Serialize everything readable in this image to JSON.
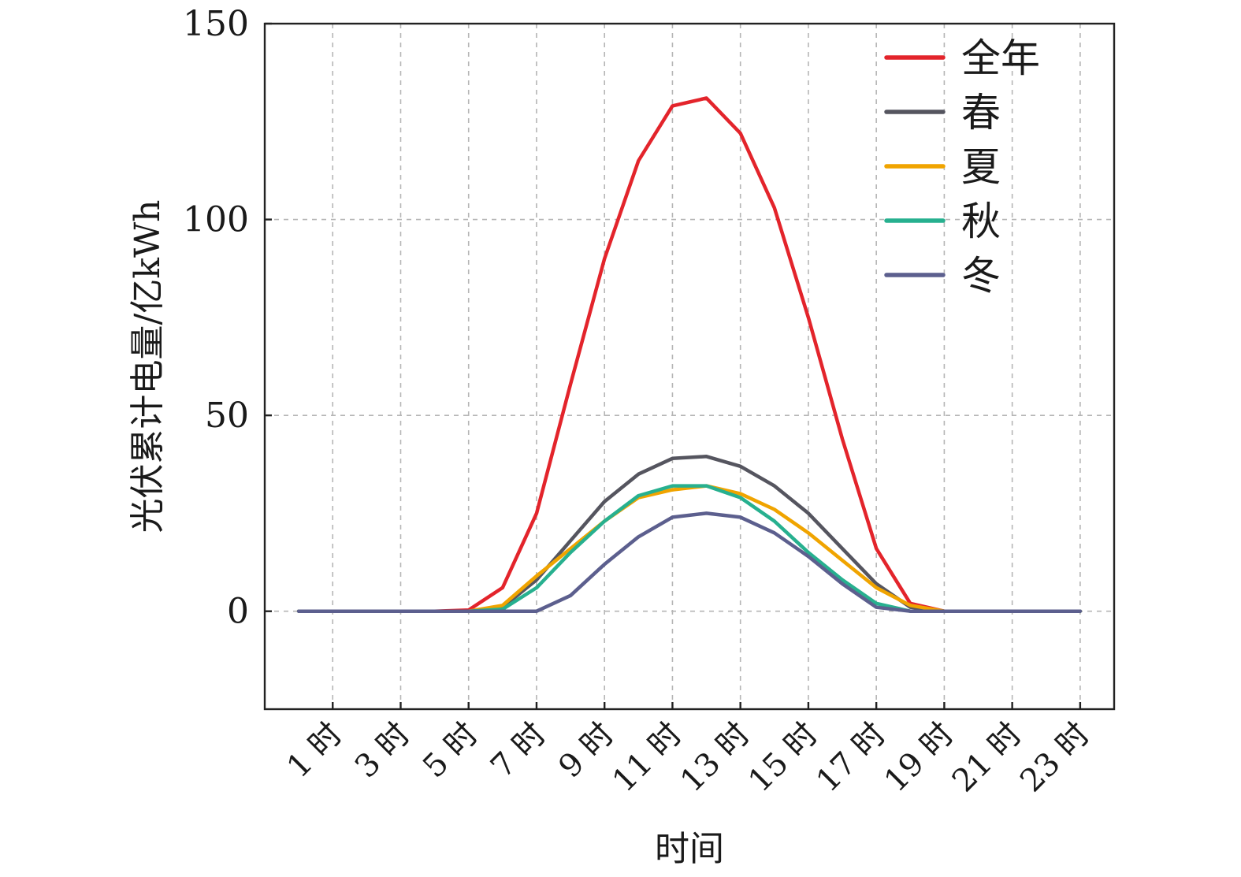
{
  "chart_data": {
    "type": "line",
    "xlabel": "时间",
    "ylabel": "光伏累计电量/亿kWh",
    "ylim": [
      -25,
      150
    ],
    "yticks": [
      0,
      50,
      100,
      150
    ],
    "ytick_labels": [
      "0",
      "50",
      "100",
      "150"
    ],
    "x": [
      0,
      1,
      2,
      3,
      4,
      5,
      6,
      7,
      8,
      9,
      10,
      11,
      12,
      13,
      14,
      15,
      16,
      17,
      18,
      19,
      20,
      21,
      22,
      23
    ],
    "xlim": [
      -1,
      24
    ],
    "xticks": [
      1,
      3,
      5,
      7,
      9,
      11,
      13,
      15,
      17,
      19,
      21,
      23
    ],
    "xtick_labels": [
      "1 时",
      "3 时",
      "5 时",
      "7 时",
      "9 时",
      "11 时",
      "13 时",
      "15 时",
      "17 时",
      "19 时",
      "21 时",
      "23 时"
    ],
    "grid": true,
    "legend_position": "top-right",
    "series": [
      {
        "name": "全年",
        "color": "#e3242b",
        "values": [
          0,
          0,
          0,
          0,
          0,
          0.3,
          6,
          25,
          58,
          90,
          115,
          129,
          131,
          122,
          103,
          75,
          44,
          16,
          2,
          0,
          0,
          0,
          0,
          0
        ]
      },
      {
        "name": "春",
        "color": "#55555f",
        "values": [
          0,
          0,
          0,
          0,
          0,
          0,
          1,
          8,
          18,
          28,
          35,
          39,
          39.5,
          37,
          32,
          25,
          16,
          7,
          1,
          0,
          0,
          0,
          0,
          0
        ]
      },
      {
        "name": "夏",
        "color": "#f0a400",
        "values": [
          0,
          0,
          0,
          0,
          0,
          0,
          1.5,
          9,
          16,
          23,
          29,
          31,
          32,
          30,
          26,
          20,
          13,
          6,
          1.5,
          0,
          0,
          0,
          0,
          0
        ]
      },
      {
        "name": "秋",
        "color": "#27b08f",
        "values": [
          0,
          0,
          0,
          0,
          0,
          0,
          0.5,
          6,
          15,
          23,
          29.5,
          32,
          32,
          29,
          23,
          15,
          8,
          2,
          0,
          0,
          0,
          0,
          0,
          0
        ]
      },
      {
        "name": "冬",
        "color": "#5c5f8e",
        "values": [
          0,
          0,
          0,
          0,
          0,
          0,
          0,
          0,
          4,
          12,
          19,
          24,
          25,
          24,
          20,
          14,
          7,
          1,
          0,
          0,
          0,
          0,
          0,
          0
        ]
      }
    ]
  }
}
